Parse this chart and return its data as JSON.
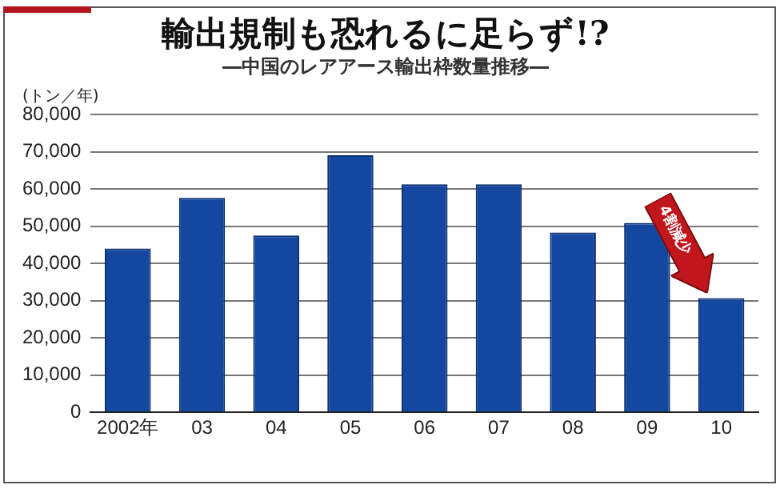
{
  "chart_data": {
    "type": "bar",
    "title": "輸出規制も恐れるに足らず!?",
    "subtitle": "―中国のレアアース輸出枠数量推移―",
    "ylabel": "(トン／年)",
    "categories": [
      "2002年",
      "03",
      "04",
      "05",
      "06",
      "07",
      "08",
      "09",
      "10"
    ],
    "values": [
      44000,
      57600,
      47500,
      69100,
      61300,
      61300,
      48300,
      50900,
      30700
    ],
    "color": "#1447a0",
    "ylim": [
      0,
      80000
    ],
    "yticks": [
      0,
      {
        "value": 10000,
        "label": "10,000"
      },
      {
        "value": 20000,
        "label": "20,000"
      },
      {
        "value": 30000,
        "label": "30,000"
      },
      {
        "value": 40000,
        "label": "40,000"
      },
      {
        "value": 50000,
        "label": "50,000"
      },
      {
        "value": 60000,
        "label": "60,000"
      },
      {
        "value": 70000,
        "label": "70,000"
      },
      {
        "value": 80000,
        "label": "80,000"
      }
    ],
    "grid": "y",
    "annotations": [
      "4割減少"
    ]
  }
}
